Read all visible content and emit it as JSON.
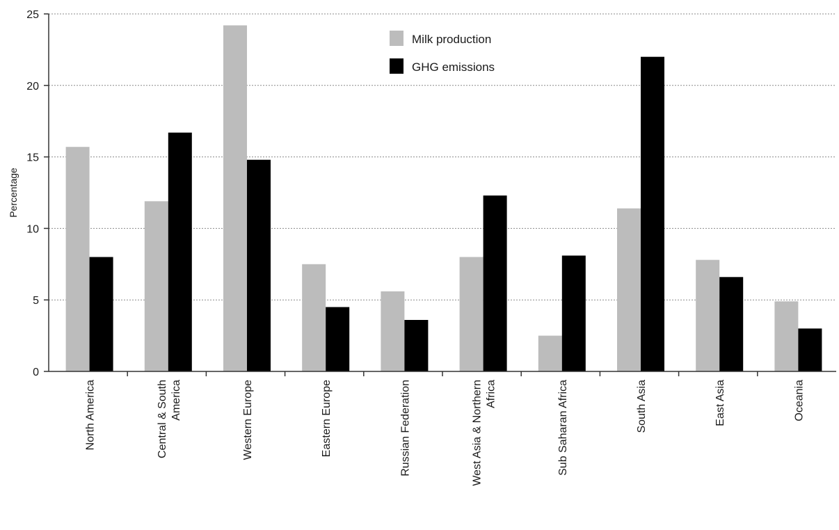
{
  "chart_data": {
    "type": "bar",
    "title": "",
    "xlabel": "",
    "ylabel": "Percentage",
    "ylim": [
      0,
      25
    ],
    "yticks": [
      0,
      5,
      10,
      15,
      20,
      25
    ],
    "grid": "horizontal-dotted",
    "legend_position": "top-center",
    "categories": [
      [
        "North America"
      ],
      [
        "Central & South",
        "America"
      ],
      [
        "Western Europe"
      ],
      [
        "Eastern Europe"
      ],
      [
        "Russian Federation"
      ],
      [
        "West Asia & Northern",
        "Africa"
      ],
      [
        "Sub Saharan Africa"
      ],
      [
        "South Asia"
      ],
      [
        "East Asia"
      ],
      [
        "Oceania"
      ]
    ],
    "series": [
      {
        "name": "Milk production",
        "color": "#bcbcbc",
        "values": [
          15.7,
          11.9,
          24.2,
          7.5,
          5.6,
          8.0,
          2.5,
          11.4,
          7.8,
          4.9
        ]
      },
      {
        "name": "GHG emissions",
        "color": "#000000",
        "values": [
          8.0,
          16.7,
          14.8,
          4.5,
          3.6,
          12.3,
          8.1,
          22.0,
          6.6,
          3.0
        ]
      }
    ]
  }
}
